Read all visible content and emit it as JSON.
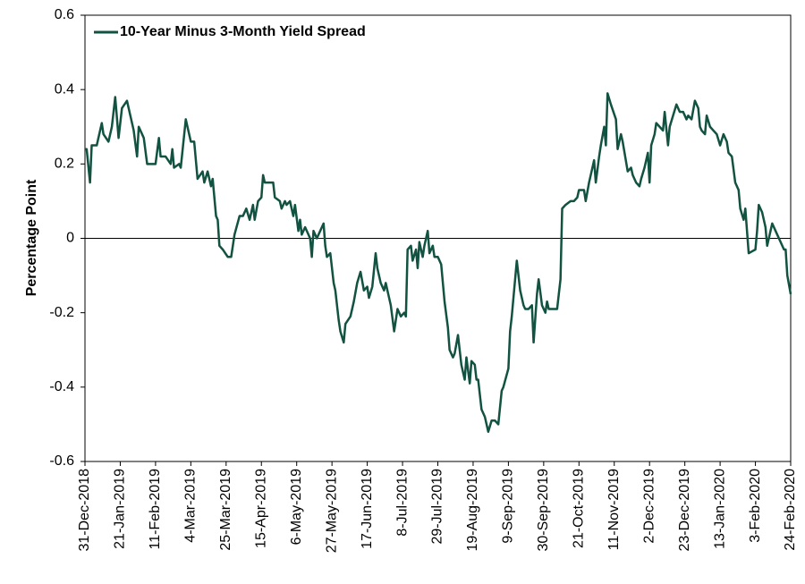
{
  "chart_data": {
    "type": "line",
    "ylabel": "Percentage Point",
    "legend": "upper left",
    "xlim": [
      "2018-12-31",
      "2020-02-24"
    ],
    "xticks": [
      {
        "value": "2018-12-31",
        "label": "31-Dec-2018"
      },
      {
        "value": "2019-01-21",
        "label": "21-Jan-2019"
      },
      {
        "value": "2019-02-11",
        "label": "11-Feb-2019"
      },
      {
        "value": "2019-03-04",
        "label": "4-Mar-2019"
      },
      {
        "value": "2019-03-25",
        "label": "25-Mar-2019"
      },
      {
        "value": "2019-04-15",
        "label": "15-Apr-2019"
      },
      {
        "value": "2019-05-06",
        "label": "6-May-2019"
      },
      {
        "value": "2019-05-27",
        "label": "27-May-2019"
      },
      {
        "value": "2019-06-17",
        "label": "17-Jun-2019"
      },
      {
        "value": "2019-07-08",
        "label": "8-Jul-2019"
      },
      {
        "value": "2019-07-29",
        "label": "29-Jul-2019"
      },
      {
        "value": "2019-08-19",
        "label": "19-Aug-2019"
      },
      {
        "value": "2019-09-09",
        "label": "9-Sep-2019"
      },
      {
        "value": "2019-09-30",
        "label": "30-Sep-2019"
      },
      {
        "value": "2019-10-21",
        "label": "21-Oct-2019"
      },
      {
        "value": "2019-11-11",
        "label": "11-Nov-2019"
      },
      {
        "value": "2019-12-02",
        "label": "2-Dec-2019"
      },
      {
        "value": "2019-12-23",
        "label": "23-Dec-2019"
      },
      {
        "value": "2020-01-13",
        "label": "13-Jan-2020"
      },
      {
        "value": "2020-02-03",
        "label": "3-Feb-2020"
      },
      {
        "value": "2020-02-24",
        "label": "24-Feb-2020"
      }
    ],
    "ylim": [
      -0.6,
      0.6
    ],
    "yticks": [
      -0.6,
      -0.4,
      -0.2,
      0,
      0.2,
      0.4,
      0.6
    ],
    "x": [
      "2018-12-31",
      "2019-01-01",
      "2019-01-03",
      "2019-01-04",
      "2019-01-07",
      "2019-01-10",
      "2019-01-11",
      "2019-01-14",
      "2019-01-16",
      "2019-01-18",
      "2019-01-20",
      "2019-01-22",
      "2019-01-25",
      "2019-01-27",
      "2019-01-29",
      "2019-01-31",
      "2019-02-01",
      "2019-02-03",
      "2019-02-04",
      "2019-02-06",
      "2019-02-11",
      "2019-02-13",
      "2019-02-14",
      "2019-02-17",
      "2019-02-20",
      "2019-02-21",
      "2019-02-22",
      "2019-02-25",
      "2019-02-26",
      "2019-03-01",
      "2019-03-04",
      "2019-03-06",
      "2019-03-08",
      "2019-03-11",
      "2019-03-12",
      "2019-03-14",
      "2019-03-16",
      "2019-03-17",
      "2019-03-19",
      "2019-03-20",
      "2019-03-21",
      "2019-03-23",
      "2019-03-26",
      "2019-03-28",
      "2019-03-30",
      "2019-04-02",
      "2019-04-04",
      "2019-04-06",
      "2019-04-08",
      "2019-04-10",
      "2019-04-11",
      "2019-04-13",
      "2019-04-15",
      "2019-04-16",
      "2019-04-17",
      "2019-04-22",
      "2019-04-23",
      "2019-04-26",
      "2019-04-27",
      "2019-04-29",
      "2019-04-30",
      "2019-05-02",
      "2019-05-04",
      "2019-05-05",
      "2019-05-07",
      "2019-05-08",
      "2019-05-09",
      "2019-05-11",
      "2019-05-14",
      "2019-05-15",
      "2019-05-16",
      "2019-05-18",
      "2019-05-20",
      "2019-05-22",
      "2019-05-23",
      "2019-05-24",
      "2019-05-26",
      "2019-05-28",
      "2019-05-29",
      "2019-05-31",
      "2019-06-01",
      "2019-06-03",
      "2019-06-04",
      "2019-06-07",
      "2019-06-09",
      "2019-06-11",
      "2019-06-13",
      "2019-06-15",
      "2019-06-17",
      "2019-06-18",
      "2019-06-20",
      "2019-06-22",
      "2019-06-23",
      "2019-06-25",
      "2019-06-27",
      "2019-06-28",
      "2019-07-01",
      "2019-07-03",
      "2019-07-05",
      "2019-07-07",
      "2019-07-09",
      "2019-07-10",
      "2019-07-11",
      "2019-07-13",
      "2019-07-14",
      "2019-07-16",
      "2019-07-17",
      "2019-07-18",
      "2019-07-20",
      "2019-07-21",
      "2019-07-23",
      "2019-07-24",
      "2019-07-26",
      "2019-07-27",
      "2019-07-29",
      "2019-07-31",
      "2019-08-02",
      "2019-08-04",
      "2019-08-05",
      "2019-08-07",
      "2019-08-08",
      "2019-08-10",
      "2019-08-12",
      "2019-08-13",
      "2019-08-14",
      "2019-08-15",
      "2019-08-17",
      "2019-08-18",
      "2019-08-20",
      "2019-08-21",
      "2019-08-22",
      "2019-08-24",
      "2019-08-26",
      "2019-08-28",
      "2019-08-30",
      "2019-09-01",
      "2019-09-03",
      "2019-09-05",
      "2019-09-06",
      "2019-09-09",
      "2019-09-10",
      "2019-09-11",
      "2019-09-14",
      "2019-09-16",
      "2019-09-18",
      "2019-09-19",
      "2019-09-21",
      "2019-09-23",
      "2019-09-24",
      "2019-09-26",
      "2019-09-27",
      "2019-09-29",
      "2019-10-01",
      "2019-10-02",
      "2019-10-03",
      "2019-10-05",
      "2019-10-08",
      "2019-10-10",
      "2019-10-11",
      "2019-10-13",
      "2019-10-16",
      "2019-10-18",
      "2019-10-20",
      "2019-10-21",
      "2019-10-24",
      "2019-10-25",
      "2019-10-27",
      "2019-10-29",
      "2019-10-30",
      "2019-10-31",
      "2019-11-02",
      "2019-11-03",
      "2019-11-05",
      "2019-11-06",
      "2019-11-07",
      "2019-11-09",
      "2019-11-12",
      "2019-11-13",
      "2019-11-15",
      "2019-11-16",
      "2019-11-19",
      "2019-11-21",
      "2019-11-22",
      "2019-11-24",
      "2019-11-26",
      "2019-11-27",
      "2019-11-29",
      "2019-12-01",
      "2019-12-02",
      "2019-12-03",
      "2019-12-05",
      "2019-12-06",
      "2019-12-08",
      "2019-12-10",
      "2019-12-11",
      "2019-12-13",
      "2019-12-14",
      "2019-12-16",
      "2019-12-18",
      "2019-12-20",
      "2019-12-22",
      "2019-12-24",
      "2019-12-25",
      "2019-12-27",
      "2019-12-29",
      "2019-12-31",
      "2020-01-01",
      "2020-01-02",
      "2020-01-04",
      "2020-01-05",
      "2020-01-07",
      "2020-01-09",
      "2020-01-11",
      "2020-01-13",
      "2020-01-15",
      "2020-01-17",
      "2020-01-18",
      "2020-01-20",
      "2020-01-22",
      "2020-01-24",
      "2020-01-25",
      "2020-01-27",
      "2020-01-28",
      "2020-01-30",
      "2020-02-01",
      "2020-02-03",
      "2020-02-04",
      "2020-02-05",
      "2020-02-07",
      "2020-02-09",
      "2020-02-10",
      "2020-02-12",
      "2020-02-13",
      "2020-02-15",
      "2020-02-17",
      "2020-02-18",
      "2020-02-20",
      "2020-02-21",
      "2020-02-22",
      "2020-02-24"
    ],
    "series": [
      {
        "name": "10-Year Minus 3-Month Yield Spread",
        "color": "#115241",
        "values": [
          0.24,
          0.24,
          0.15,
          0.25,
          0.25,
          0.31,
          0.28,
          0.26,
          0.3,
          0.38,
          0.27,
          0.35,
          0.37,
          0.33,
          0.29,
          0.22,
          0.3,
          0.28,
          0.27,
          0.2,
          0.2,
          0.27,
          0.22,
          0.22,
          0.2,
          0.24,
          0.19,
          0.2,
          0.19,
          0.32,
          0.26,
          0.26,
          0.16,
          0.18,
          0.15,
          0.18,
          0.14,
          0.16,
          0.06,
          0.05,
          -0.02,
          -0.03,
          -0.05,
          -0.05,
          0.01,
          0.06,
          0.06,
          0.08,
          0.05,
          0.09,
          0.05,
          0.1,
          0.11,
          0.17,
          0.15,
          0.15,
          0.11,
          0.1,
          0.08,
          0.1,
          0.09,
          0.1,
          0.06,
          0.09,
          0.02,
          0.05,
          0.01,
          0.03,
          0.0,
          -0.05,
          0.02,
          0.0,
          0.02,
          0.04,
          -0.02,
          -0.05,
          -0.04,
          -0.12,
          -0.14,
          -0.22,
          -0.25,
          -0.28,
          -0.23,
          -0.21,
          -0.17,
          -0.12,
          -0.09,
          -0.14,
          -0.13,
          -0.16,
          -0.13,
          -0.04,
          -0.08,
          -0.12,
          -0.14,
          -0.12,
          -0.18,
          -0.25,
          -0.19,
          -0.21,
          -0.2,
          -0.21,
          -0.03,
          -0.02,
          -0.06,
          -0.03,
          -0.08,
          -0.01,
          -0.05,
          -0.02,
          0.02,
          -0.04,
          -0.02,
          -0.05,
          -0.05,
          -0.07,
          -0.17,
          -0.24,
          -0.3,
          -0.32,
          -0.31,
          -0.26,
          -0.34,
          -0.36,
          -0.38,
          -0.32,
          -0.39,
          -0.33,
          -0.34,
          -0.38,
          -0.38,
          -0.46,
          -0.48,
          -0.52,
          -0.49,
          -0.49,
          -0.5,
          -0.41,
          -0.4,
          -0.35,
          -0.25,
          -0.21,
          -0.06,
          -0.14,
          -0.18,
          -0.19,
          -0.19,
          -0.18,
          -0.28,
          -0.15,
          -0.11,
          -0.18,
          -0.2,
          -0.17,
          -0.19,
          -0.19,
          -0.19,
          -0.11,
          0.08,
          0.09,
          0.1,
          0.1,
          0.11,
          0.13,
          0.13,
          0.1,
          0.15,
          0.19,
          0.21,
          0.15,
          0.22,
          0.25,
          0.3,
          0.25,
          0.39,
          0.36,
          0.32,
          0.24,
          0.28,
          0.26,
          0.18,
          0.19,
          0.17,
          0.15,
          0.14,
          0.16,
          0.19,
          0.23,
          0.15,
          0.25,
          0.28,
          0.31,
          0.3,
          0.29,
          0.34,
          0.25,
          0.3,
          0.33,
          0.36,
          0.34,
          0.34,
          0.32,
          0.33,
          0.32,
          0.37,
          0.35,
          0.3,
          0.29,
          0.28,
          0.33,
          0.3,
          0.29,
          0.28,
          0.25,
          0.28,
          0.26,
          0.23,
          0.22,
          0.15,
          0.13,
          0.08,
          0.05,
          0.08,
          -0.04,
          -0.035,
          -0.03,
          0.02,
          0.09,
          0.07,
          0.03,
          -0.02,
          0.02,
          0.04,
          0.02,
          0.0,
          -0.01,
          -0.03,
          -0.03,
          -0.1,
          -0.15
        ]
      }
    ]
  }
}
